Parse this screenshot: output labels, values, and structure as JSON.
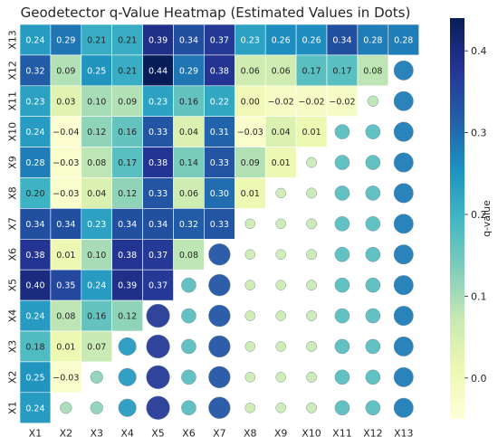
{
  "chart_data": {
    "type": "heatmap",
    "title": "Geodetector q-Value Heatmap (Estimated Values in Dots)",
    "x_categories": [
      "X1",
      "X2",
      "X3",
      "X4",
      "X5",
      "X6",
      "X7",
      "X8",
      "X9",
      "X10",
      "X11",
      "X12",
      "X13"
    ],
    "y_categories": [
      "X13",
      "X12",
      "X11",
      "X10",
      "X9",
      "X8",
      "X7",
      "X6",
      "X5",
      "X4",
      "X3",
      "X2",
      "X1"
    ],
    "values": [
      [
        0.24,
        0.29,
        0.21,
        0.21,
        0.39,
        0.34,
        0.37,
        0.23,
        0.26,
        0.26,
        0.34,
        0.28,
        0.28
      ],
      [
        0.32,
        0.09,
        0.25,
        0.21,
        0.44,
        0.29,
        0.38,
        0.06,
        0.06,
        0.17,
        0.17,
        0.08,
        null
      ],
      [
        0.23,
        0.03,
        0.1,
        0.09,
        0.23,
        0.16,
        0.22,
        0.0,
        -0.02,
        -0.02,
        -0.02,
        null,
        null
      ],
      [
        0.24,
        -0.04,
        0.12,
        0.16,
        0.33,
        0.04,
        0.31,
        -0.03,
        0.04,
        0.01,
        null,
        null,
        null
      ],
      [
        0.28,
        -0.03,
        0.08,
        0.17,
        0.38,
        0.14,
        0.33,
        0.09,
        0.01,
        null,
        null,
        null,
        null
      ],
      [
        0.2,
        -0.03,
        0.04,
        0.12,
        0.33,
        0.06,
        0.3,
        0.01,
        null,
        null,
        null,
        null,
        null
      ],
      [
        0.34,
        0.34,
        0.23,
        0.34,
        0.34,
        0.32,
        0.33,
        null,
        null,
        null,
        null,
        null,
        null
      ],
      [
        0.38,
        0.01,
        0.1,
        0.38,
        0.37,
        0.08,
        null,
        null,
        null,
        null,
        null,
        null,
        null
      ],
      [
        0.4,
        0.35,
        0.24,
        0.39,
        0.37,
        null,
        null,
        null,
        null,
        null,
        null,
        null,
        null
      ],
      [
        0.24,
        0.08,
        0.16,
        0.12,
        null,
        null,
        null,
        null,
        null,
        null,
        null,
        null,
        null
      ],
      [
        0.18,
        0.01,
        0.07,
        null,
        null,
        null,
        null,
        null,
        null,
        null,
        null,
        null,
        null
      ],
      [
        0.25,
        -0.03,
        null,
        null,
        null,
        null,
        null,
        null,
        null,
        null,
        null,
        null,
        null
      ],
      [
        0.24,
        null,
        null,
        null,
        null,
        null,
        null,
        null,
        null,
        null,
        null,
        null,
        null
      ]
    ],
    "dot_values": [
      [
        null,
        null,
        null,
        null,
        null,
        null,
        null,
        null,
        null,
        null,
        null,
        null,
        null
      ],
      [
        null,
        null,
        null,
        null,
        null,
        null,
        null,
        null,
        null,
        null,
        null,
        null,
        0.28
      ],
      [
        null,
        null,
        null,
        null,
        null,
        null,
        null,
        null,
        null,
        null,
        null,
        0.08,
        0.28
      ],
      [
        null,
        null,
        null,
        null,
        null,
        null,
        null,
        null,
        null,
        null,
        0.17,
        0.17,
        0.28
      ],
      [
        null,
        null,
        null,
        null,
        null,
        null,
        null,
        null,
        null,
        0.07,
        0.17,
        0.17,
        0.28
      ],
      [
        null,
        null,
        null,
        null,
        null,
        null,
        null,
        null,
        0.06,
        0.07,
        0.17,
        0.17,
        0.28
      ],
      [
        null,
        null,
        null,
        null,
        null,
        null,
        null,
        0.06,
        0.06,
        0.07,
        0.17,
        0.17,
        0.28
      ],
      [
        null,
        null,
        null,
        null,
        null,
        null,
        0.33,
        0.06,
        0.06,
        0.07,
        0.17,
        0.17,
        0.28
      ],
      [
        null,
        null,
        null,
        null,
        null,
        0.17,
        0.33,
        0.06,
        0.06,
        0.07,
        0.17,
        0.17,
        0.28
      ],
      [
        null,
        null,
        null,
        null,
        0.37,
        0.17,
        0.33,
        0.06,
        0.06,
        0.07,
        0.17,
        0.17,
        0.28
      ],
      [
        null,
        null,
        null,
        0.24,
        0.37,
        0.17,
        0.33,
        0.06,
        0.06,
        0.07,
        0.17,
        0.17,
        0.28
      ],
      [
        null,
        null,
        0.12,
        0.24,
        0.37,
        0.17,
        0.33,
        0.06,
        0.06,
        0.07,
        0.17,
        0.17,
        0.28
      ],
      [
        null,
        0.1,
        0.12,
        0.24,
        0.37,
        0.17,
        0.33,
        0.06,
        0.06,
        0.07,
        0.17,
        0.17,
        0.28
      ]
    ],
    "colorbar": {
      "label": "q-value",
      "min": -0.05,
      "max": 0.44,
      "ticks": [
        0.0,
        0.1,
        0.2,
        0.3,
        0.4
      ],
      "tick_labels": [
        "0.0",
        "0.1",
        "0.2",
        "0.3",
        "0.4"
      ]
    },
    "colormap": "YlGnBu",
    "colormap_stops": [
      "#ffffd9",
      "#edf8b1",
      "#c7e9b4",
      "#7fcdbb",
      "#41b6c4",
      "#1d91c0",
      "#225ea8",
      "#253494",
      "#081d58"
    ]
  }
}
